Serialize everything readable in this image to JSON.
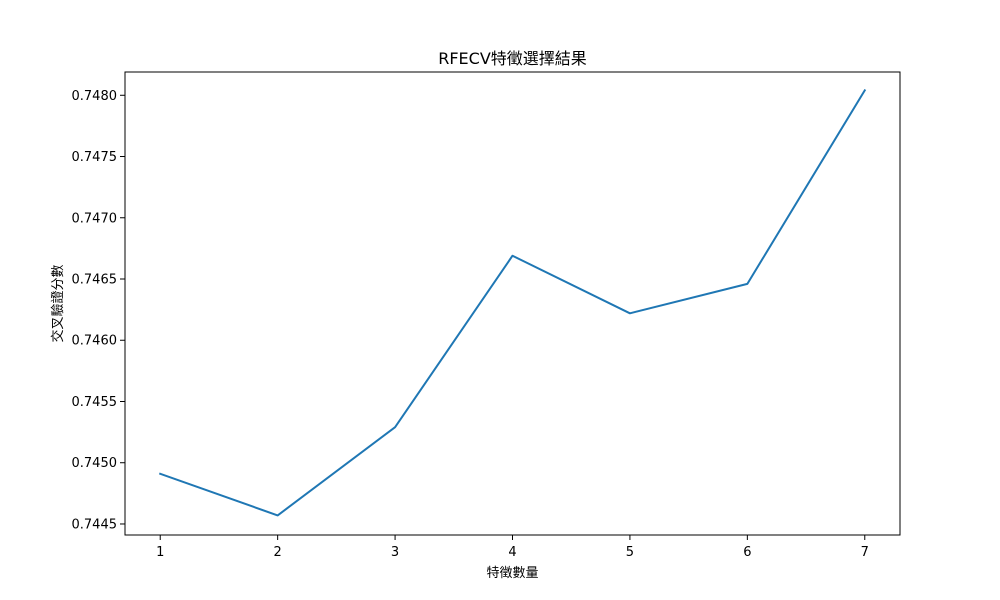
{
  "chart_data": {
    "type": "line",
    "title": "RFECV特徵選擇結果",
    "xlabel": "特徵數量",
    "ylabel": "交叉驗證分數",
    "x": [
      1,
      2,
      3,
      4,
      5,
      6,
      7
    ],
    "series": [
      {
        "values": [
          0.74491,
          0.74457,
          0.74529,
          0.74669,
          0.74622,
          0.74646,
          0.74804
        ],
        "color": "#1f77b4"
      }
    ],
    "xlim": [
      0.7,
      7.3
    ],
    "ylim": [
      0.74441,
      0.74819
    ],
    "xticks": [
      1,
      2,
      3,
      4,
      5,
      6,
      7
    ],
    "yticks": [
      0.7445,
      0.745,
      0.7455,
      0.746,
      0.7465,
      0.747,
      0.7475,
      0.748
    ],
    "ytick_labels": [
      "0.7445",
      "0.7450",
      "0.7455",
      "0.7460",
      "0.7465",
      "0.7470",
      "0.7475",
      "0.7480"
    ],
    "xtick_labels": [
      "1",
      "2",
      "3",
      "4",
      "5",
      "6",
      "7"
    ],
    "grid": false,
    "legend": "none"
  }
}
